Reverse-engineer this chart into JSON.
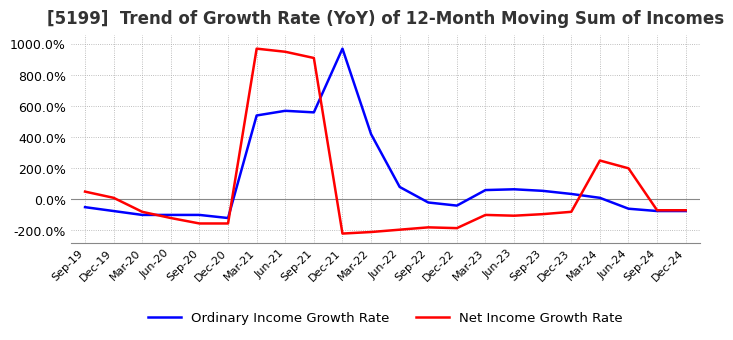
{
  "title": "[5199]  Trend of Growth Rate (YoY) of 12-Month Moving Sum of Incomes",
  "title_fontsize": 12,
  "ylim": [
    -280,
    1060
  ],
  "yticks": [
    -200,
    0,
    200,
    400,
    600,
    800,
    1000
  ],
  "background_color": "#ffffff",
  "grid_color": "#aaaaaa",
  "legend_labels": [
    "Ordinary Income Growth Rate",
    "Net Income Growth Rate"
  ],
  "legend_colors": [
    "#0000ff",
    "#ff0000"
  ],
  "x_labels": [
    "Sep-19",
    "Dec-19",
    "Mar-20",
    "Jun-20",
    "Sep-20",
    "Dec-20",
    "Mar-21",
    "Jun-21",
    "Sep-21",
    "Dec-21",
    "Mar-22",
    "Jun-22",
    "Sep-22",
    "Dec-22",
    "Mar-23",
    "Jun-23",
    "Sep-23",
    "Dec-23",
    "Mar-24",
    "Jun-24",
    "Sep-24",
    "Dec-24"
  ],
  "ordinary_income": [
    -50,
    -75,
    -100,
    -100,
    -100,
    -120,
    540,
    570,
    560,
    970,
    420,
    80,
    -20,
    -40,
    60,
    65,
    55,
    35,
    10,
    -60,
    -75,
    -75
  ],
  "net_income": [
    50,
    10,
    -80,
    -120,
    -155,
    -155,
    970,
    950,
    910,
    -220,
    -210,
    -195,
    -180,
    -185,
    -100,
    -105,
    -95,
    -80,
    250,
    200,
    -70,
    -70
  ]
}
